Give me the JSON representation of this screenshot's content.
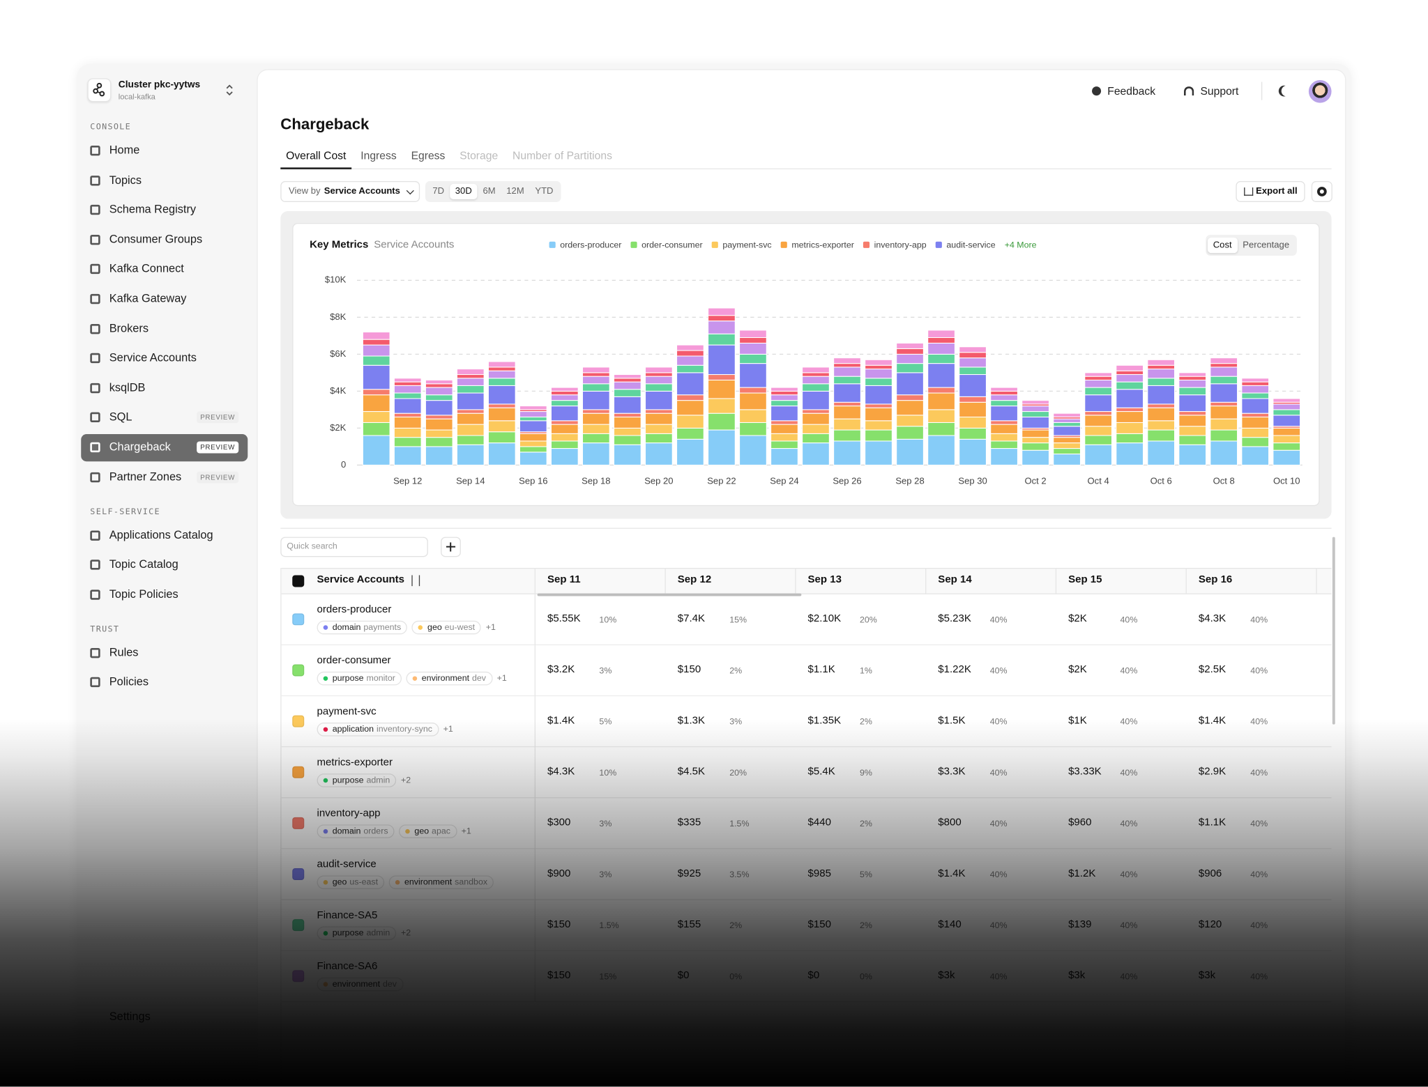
{
  "sidebar": {
    "cluster": {
      "name": "Cluster pkc-yytws",
      "sub": "local-kafka"
    },
    "sections": [
      {
        "title": "CONSOLE",
        "items": [
          {
            "label": "Home"
          },
          {
            "label": "Topics"
          },
          {
            "label": "Schema Registry"
          },
          {
            "label": "Consumer Groups"
          },
          {
            "label": "Kafka Connect"
          },
          {
            "label": "Kafka Gateway"
          },
          {
            "label": "Brokers"
          },
          {
            "label": "Service Accounts"
          },
          {
            "label": "ksqlDB"
          },
          {
            "label": "SQL",
            "badge": "PREVIEW"
          },
          {
            "label": "Chargeback",
            "badge": "PREVIEW",
            "active": true
          },
          {
            "label": "Partner Zones",
            "badge": "PREVIEW"
          }
        ]
      },
      {
        "title": "SELF-SERVICE",
        "items": [
          {
            "label": "Applications Catalog"
          },
          {
            "label": "Topic Catalog"
          },
          {
            "label": "Topic Policies"
          }
        ]
      },
      {
        "title": "TRUST",
        "items": [
          {
            "label": "Rules"
          },
          {
            "label": "Policies"
          }
        ]
      }
    ],
    "footer": "Settings"
  },
  "header": {
    "feedback": "Feedback",
    "support": "Support"
  },
  "page": {
    "title": "Chargeback",
    "tabs": [
      {
        "label": "Overall Cost",
        "active": true
      },
      {
        "label": "Ingress"
      },
      {
        "label": "Egress"
      },
      {
        "label": "Storage",
        "disabled": true
      },
      {
        "label": "Number of Partitions",
        "disabled": true
      }
    ],
    "view_by": {
      "label": "View by",
      "value": "Service Accounts"
    },
    "ranges": [
      "7D",
      "30D",
      "6M",
      "12M",
      "YTD"
    ],
    "active_range": 1,
    "export": "Export all"
  },
  "chart_data": {
    "type": "bar",
    "stacked": true,
    "title": "Key Metrics",
    "subtitle": "Service Accounts",
    "legend_more": "+4 More",
    "modes": [
      "Cost",
      "Percentage"
    ],
    "active_mode": 0,
    "grid": true,
    "categories": [
      null,
      "Sep 12",
      null,
      "Sep 14",
      null,
      "Sep 16",
      null,
      "Sep 18",
      null,
      "Sep 20",
      null,
      "Sep 22",
      null,
      "Sep 24",
      null,
      "Sep 26",
      null,
      "Sep 28",
      null,
      "Sep 30",
      null,
      "Oct 2",
      null,
      "Oct 4",
      null,
      "Oct 6",
      null,
      "Oct 8",
      null,
      "Oct 10"
    ],
    "ylim": [
      0,
      10000
    ],
    "yticks": [
      0,
      {
        "value": 2000,
        "label": "$2K"
      },
      {
        "value": 4000,
        "label": "$4K"
      },
      {
        "value": 6000,
        "label": "$6K"
      },
      {
        "value": 8000,
        "label": "$8K"
      },
      {
        "value": 10000,
        "label": "$10K"
      }
    ],
    "series": [
      {
        "name": "orders-producer",
        "color": "#86ccf8",
        "values": [
          1600,
          1000,
          1000,
          1100,
          1200,
          700,
          900,
          1200,
          1100,
          1200,
          1400,
          1900,
          1600,
          900,
          1200,
          1300,
          1300,
          1400,
          1600,
          1400,
          900,
          800,
          600,
          1100,
          1200,
          1300,
          1100,
          1300,
          1000,
          800
        ]
      },
      {
        "name": "order-consumer",
        "color": "#86e06c",
        "values": [
          700,
          500,
          500,
          500,
          600,
          300,
          400,
          500,
          500,
          500,
          600,
          900,
          700,
          400,
          500,
          600,
          600,
          700,
          700,
          600,
          400,
          400,
          300,
          500,
          500,
          600,
          500,
          600,
          500,
          400
        ]
      },
      {
        "name": "payment-svc",
        "color": "#fcc95c",
        "values": [
          600,
          500,
          400,
          600,
          600,
          300,
          400,
          500,
          400,
          500,
          700,
          800,
          700,
          400,
          500,
          600,
          500,
          600,
          700,
          600,
          400,
          300,
          300,
          500,
          600,
          500,
          500,
          600,
          500,
          400
        ]
      },
      {
        "name": "metrics-exporter",
        "color": "#f9a440",
        "values": [
          900,
          600,
          600,
          600,
          700,
          400,
          500,
          600,
          600,
          600,
          800,
          1000,
          900,
          500,
          600,
          700,
          700,
          800,
          900,
          800,
          500,
          400,
          300,
          600,
          600,
          700,
          600,
          700,
          600,
          400
        ]
      },
      {
        "name": "inventory-app",
        "color": "#f67c6c",
        "values": [
          300,
          200,
          200,
          200,
          200,
          100,
          200,
          200,
          200,
          200,
          300,
          300,
          300,
          200,
          200,
          200,
          200,
          300,
          300,
          300,
          200,
          100,
          100,
          200,
          200,
          200,
          200,
          200,
          200,
          100
        ]
      },
      {
        "name": "audit-service",
        "color": "#7c80f0",
        "values": [
          1300,
          800,
          800,
          900,
          1000,
          600,
          800,
          1000,
          900,
          1000,
          1200,
          1600,
          1300,
          800,
          1000,
          1000,
          1000,
          1200,
          1300,
          1200,
          800,
          600,
          500,
          900,
          1000,
          1000,
          900,
          1000,
          800,
          600
        ]
      },
      {
        "color": "#5fd49e",
        "values": [
          500,
          300,
          300,
          400,
          400,
          200,
          300,
          400,
          400,
          400,
          400,
          600,
          500,
          300,
          400,
          400,
          400,
          500,
          500,
          400,
          300,
          300,
          200,
          400,
          400,
          400,
          400,
          400,
          300,
          300
        ]
      },
      {
        "color": "#c894ec",
        "values": [
          600,
          400,
          400,
          400,
          400,
          300,
          300,
          400,
          400,
          400,
          500,
          700,
          600,
          300,
          400,
          500,
          500,
          500,
          600,
          500,
          300,
          300,
          200,
          400,
          400,
          500,
          400,
          500,
          400,
          300
        ]
      },
      {
        "color": "#f45a6c",
        "values": [
          300,
          200,
          200,
          200,
          200,
          100,
          200,
          200,
          200,
          200,
          300,
          300,
          300,
          200,
          200,
          200,
          200,
          300,
          300,
          300,
          200,
          100,
          100,
          200,
          200,
          200,
          200,
          200,
          200,
          100
        ]
      },
      {
        "color": "#f59ad8",
        "values": [
          400,
          200,
          200,
          300,
          300,
          200,
          200,
          300,
          200,
          300,
          300,
          400,
          400,
          200,
          300,
          300,
          300,
          300,
          400,
          300,
          200,
          200,
          200,
          200,
          300,
          300,
          200,
          300,
          200,
          200
        ]
      }
    ]
  },
  "table": {
    "search_placeholder": "Quick search",
    "columns": [
      "Service Accounts",
      "Sep 11",
      "Sep 12",
      "Sep 13",
      "Sep 14",
      "Sep 15",
      "Sep 16"
    ],
    "rows": [
      {
        "name": "orders-producer",
        "color": "#86ccf8",
        "tags": [
          {
            "key": "domain",
            "value": "payments",
            "color": "#7c80f0"
          },
          {
            "key": "geo",
            "value": "eu-west",
            "color": "#fcc95c"
          }
        ],
        "more": "+1",
        "cells": [
          [
            "$5.55K",
            "10%"
          ],
          [
            "$7.4K",
            "15%"
          ],
          [
            "$2.10K",
            "20%"
          ],
          [
            "$5.23K",
            "40%"
          ],
          [
            "$2K",
            "40%"
          ],
          [
            "$4.3K",
            "40%"
          ]
        ]
      },
      {
        "name": "order-consumer",
        "color": "#86e06c",
        "tags": [
          {
            "key": "purpose",
            "value": "monitor",
            "color": "#22c55e"
          },
          {
            "key": "environment",
            "value": "dev",
            "color": "#fdba74"
          }
        ],
        "more": "+1",
        "cells": [
          [
            "$3.2K",
            "3%"
          ],
          [
            "$150",
            "2%"
          ],
          [
            "$1.1K",
            "1%"
          ],
          [
            "$1.22K",
            "40%"
          ],
          [
            "$2K",
            "40%"
          ],
          [
            "$2.5K",
            "40%"
          ]
        ]
      },
      {
        "name": "payment-svc",
        "color": "#fcc95c",
        "tags": [
          {
            "key": "application",
            "value": "inventory-sync",
            "color": "#e11d48"
          }
        ],
        "more": "+1",
        "cells": [
          [
            "$1.4K",
            "5%"
          ],
          [
            "$1.3K",
            "3%"
          ],
          [
            "$1.35K",
            "2%"
          ],
          [
            "$1.5K",
            "40%"
          ],
          [
            "$1K",
            "40%"
          ],
          [
            "$1.4K",
            "40%"
          ]
        ]
      },
      {
        "name": "metrics-exporter",
        "color": "#f9a440",
        "tags": [
          {
            "key": "purpose",
            "value": "admin",
            "color": "#22c55e"
          }
        ],
        "more": "+2",
        "cells": [
          [
            "$4.3K",
            "10%"
          ],
          [
            "$4.5K",
            "20%"
          ],
          [
            "$5.4K",
            "9%"
          ],
          [
            "$3.3K",
            "40%"
          ],
          [
            "$3.33K",
            "40%"
          ],
          [
            "$2.9K",
            "40%"
          ]
        ]
      },
      {
        "name": "inventory-app",
        "color": "#f67c6c",
        "tags": [
          {
            "key": "domain",
            "value": "orders",
            "color": "#7c80f0"
          },
          {
            "key": "geo",
            "value": "apac",
            "color": "#fcc95c"
          }
        ],
        "more": "+1",
        "cells": [
          [
            "$300",
            "3%"
          ],
          [
            "$335",
            "1.5%"
          ],
          [
            "$440",
            "2%"
          ],
          [
            "$800",
            "40%"
          ],
          [
            "$960",
            "40%"
          ],
          [
            "$1.1K",
            "40%"
          ]
        ]
      },
      {
        "name": "audit-service",
        "color": "#7c80f0",
        "tags": [
          {
            "key": "geo",
            "value": "us-east",
            "color": "#fcc95c"
          },
          {
            "key": "environment",
            "value": "sandbox",
            "color": "#fdba74"
          }
        ],
        "cells": [
          [
            "$900",
            "3%"
          ],
          [
            "$925",
            "3.5%"
          ],
          [
            "$985",
            "5%"
          ],
          [
            "$1.4K",
            "40%"
          ],
          [
            "$1.2K",
            "40%"
          ],
          [
            "$906",
            "40%"
          ]
        ]
      },
      {
        "name": "Finance-SA5",
        "color": "#5fd49e",
        "tags": [
          {
            "key": "purpose",
            "value": "admin",
            "color": "#22c55e"
          }
        ],
        "more": "+2",
        "cells": [
          [
            "$150",
            "1.5%"
          ],
          [
            "$155",
            "2%"
          ],
          [
            "$150",
            "2%"
          ],
          [
            "$140",
            "40%"
          ],
          [
            "$139",
            "40%"
          ],
          [
            "$120",
            "40%"
          ]
        ]
      },
      {
        "name": "Finance-SA6",
        "color": "#c894ec",
        "tags": [
          {
            "key": "environment",
            "value": "dev",
            "color": "#fdba74"
          }
        ],
        "cells": [
          [
            "$150",
            "15%"
          ],
          [
            "$0",
            "0%"
          ],
          [
            "$0",
            "0%"
          ],
          [
            "$3k",
            "40%"
          ],
          [
            "$3k",
            "40%"
          ],
          [
            "$3k",
            "40%"
          ]
        ]
      }
    ]
  }
}
